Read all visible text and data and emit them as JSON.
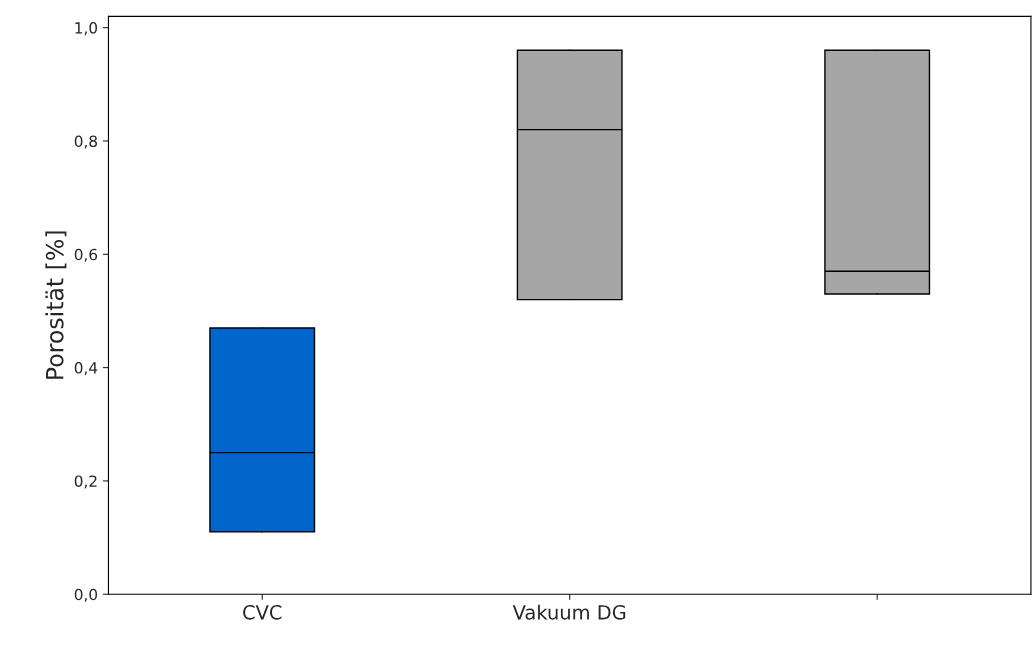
{
  "chart_data": {
    "type": "box",
    "ylabel": "Porosität [%]",
    "categories": [
      "CVC",
      "Vakuum DG",
      null
    ],
    "boxes": [
      {
        "low": 0.11,
        "q1": 0.11,
        "median": 0.25,
        "q3": 0.47,
        "high": 0.47
      },
      {
        "low": 0.52,
        "q1": 0.52,
        "median": 0.82,
        "q3": 0.96,
        "high": 0.96
      },
      {
        "low": 0.53,
        "q1": 0.53,
        "median": 0.57,
        "q3": 0.96,
        "high": 0.96
      }
    ],
    "colors": [
      "#0066cc",
      "#a6a6a6",
      "#a6a6a6"
    ],
    "ylim": [
      0,
      1.02
    ],
    "yticks": [
      {
        "value": 0,
        "label": "0,0"
      },
      {
        "value": 0.2,
        "label": "0,2"
      },
      {
        "value": 0.4,
        "label": "0,4"
      },
      {
        "value": 0.6,
        "label": "0,6"
      },
      {
        "value": 0.8,
        "label": "0,8"
      },
      {
        "value": 1.0,
        "label": "1,0"
      }
    ],
    "grid": false,
    "legend": false
  }
}
